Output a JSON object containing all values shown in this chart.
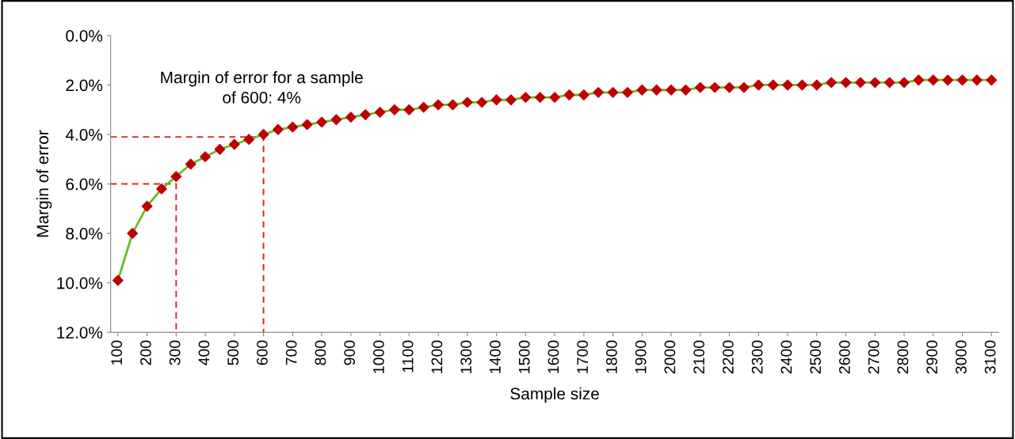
{
  "chart_data": {
    "type": "line",
    "xlabel": "Sample size",
    "ylabel": "Margin of error",
    "annotations": [
      "Margin of error for a sample\nof 600: 4%"
    ],
    "xlim": [
      75,
      3125
    ],
    "xticks": [
      100,
      200,
      300,
      400,
      500,
      600,
      700,
      800,
      900,
      1000,
      1100,
      1200,
      1300,
      1400,
      1500,
      1600,
      1700,
      1800,
      1900,
      2000,
      2100,
      2200,
      2300,
      2400,
      2500,
      2600,
      2700,
      2800,
      2900,
      3000,
      3100
    ],
    "ylim": [
      12,
      0
    ],
    "yticks": [
      {
        "value": 0,
        "label": "0.0%"
      },
      {
        "value": 2,
        "label": "2.0%"
      },
      {
        "value": 4,
        "label": "4.0%"
      },
      {
        "value": 6,
        "label": "6.0%"
      },
      {
        "value": 8,
        "label": "8.0%"
      },
      {
        "value": 10,
        "label": "10.0%"
      },
      {
        "value": 12,
        "label": "12.0%"
      }
    ],
    "grid": false,
    "legend": false,
    "series": [
      {
        "color": "#66bb22",
        "marker": "diamond",
        "line_style": "solid",
        "colors": [
          "#c00000",
          "#c00000",
          "#c00000",
          "#c00000",
          "#c00000",
          "#c00000",
          "#c00000",
          "#c00000",
          "#c00000",
          "#c00000",
          "#c00000",
          "#c00000",
          "#c00000",
          "#c00000",
          "#c00000",
          "#c00000",
          "#c00000",
          "#c00000",
          "#c00000",
          "#c00000",
          "#c00000",
          "#c00000",
          "#c00000",
          "#c00000",
          "#c00000",
          "#c00000",
          "#c00000",
          "#c00000",
          "#c00000",
          "#c00000",
          "#c00000",
          "#c00000",
          "#c00000",
          "#c00000",
          "#c00000",
          "#c00000",
          "#c00000",
          "#c00000",
          "#c00000",
          "#c00000",
          "#c00000",
          "#c00000",
          "#c00000",
          "#c00000",
          "#c00000",
          "#c00000",
          "#c00000",
          "#c00000",
          "#c00000",
          "#c00000",
          "#c00000",
          "#c00000",
          "#c00000",
          "#c00000",
          "#c00000",
          "#c00000",
          "#c00000",
          "#c00000",
          "#c00000",
          "#c00000",
          "#c00000"
        ],
        "x": [
          100,
          150,
          200,
          250,
          300,
          350,
          400,
          450,
          500,
          550,
          600,
          650,
          700,
          750,
          800,
          850,
          900,
          950,
          1000,
          1050,
          1100,
          1150,
          1200,
          1250,
          1300,
          1350,
          1400,
          1450,
          1500,
          1550,
          1600,
          1650,
          1700,
          1750,
          1800,
          1850,
          1900,
          1950,
          2000,
          2050,
          2100,
          2150,
          2200,
          2250,
          2300,
          2350,
          2400,
          2450,
          2500,
          2550,
          2600,
          2650,
          2700,
          2750,
          2800,
          2850,
          2900,
          2950,
          3000,
          3050,
          3100
        ],
        "values": [
          9.9,
          8.0,
          6.9,
          6.2,
          5.7,
          5.2,
          4.9,
          4.6,
          4.4,
          4.2,
          4.0,
          3.8,
          3.7,
          3.6,
          3.5,
          3.4,
          3.3,
          3.2,
          3.1,
          3.0,
          3.0,
          2.9,
          2.8,
          2.8,
          2.7,
          2.7,
          2.6,
          2.6,
          2.5,
          2.5,
          2.5,
          2.4,
          2.4,
          2.3,
          2.3,
          2.3,
          2.2,
          2.2,
          2.2,
          2.2,
          2.1,
          2.1,
          2.1,
          2.1,
          2.0,
          2.0,
          2.0,
          2.0,
          2.0,
          1.9,
          1.9,
          1.9,
          1.9,
          1.9,
          1.9,
          1.8,
          1.8,
          1.8,
          1.8,
          1.8,
          1.8
        ]
      },
      {
        "color": "#dd2222",
        "marker": "none",
        "line_style": "dashed",
        "x": [
          75,
          600,
          600
        ],
        "values": [
          4.1,
          4.1,
          12
        ]
      },
      {
        "color": "#dd2222",
        "marker": "none",
        "line_style": "dashed",
        "x": [
          75,
          300,
          300
        ],
        "values": [
          6.0,
          6.0,
          12
        ]
      }
    ]
  }
}
